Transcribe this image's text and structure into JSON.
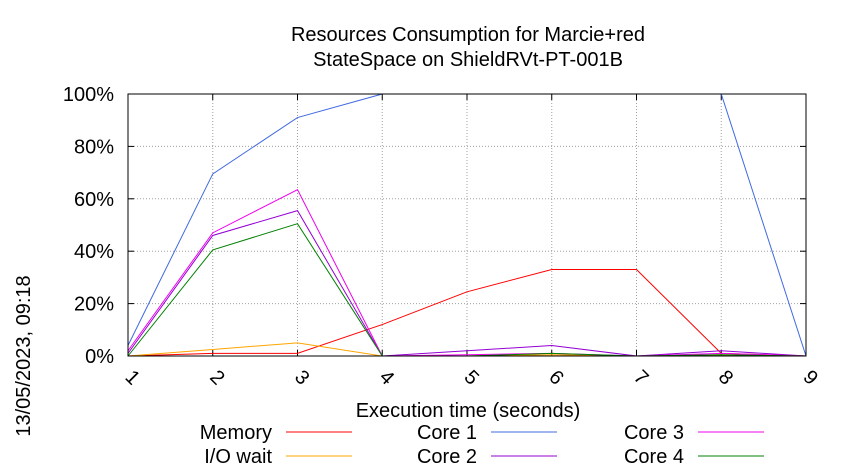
{
  "timestamp": "13/05/2023, 09:18",
  "chart_data": {
    "type": "line",
    "title": [
      "Resources Consumption for Marcie+red",
      "StateSpace on ShieldRVt-PT-001B"
    ],
    "xlabel": "Execution time (seconds)",
    "ylabel": "",
    "xlim": [
      1,
      9
    ],
    "ylim": [
      0,
      100
    ],
    "x_ticks": [
      "1",
      "2",
      "3",
      "4",
      "5",
      "6",
      "7",
      "8",
      "9"
    ],
    "y_ticks": [
      "0%",
      "20%",
      "40%",
      "60%",
      "80%",
      "100%"
    ],
    "grid": true,
    "legend_position": "bottom",
    "x": [
      1,
      2,
      3,
      4,
      5,
      6,
      7,
      8,
      9
    ],
    "series": [
      {
        "name": "Memory",
        "color": "#ff0000",
        "values": [
          0,
          1,
          1,
          12,
          24.5,
          33,
          33,
          1,
          0
        ]
      },
      {
        "name": "I/O wait",
        "color": "#ffa500",
        "values": [
          0,
          2.5,
          5,
          0,
          0,
          0.5,
          0,
          0.5,
          0
        ]
      },
      {
        "name": "Core 1",
        "color": "#4169e1",
        "values": [
          4,
          69.5,
          91,
          100,
          100,
          100,
          100,
          100,
          0
        ]
      },
      {
        "name": "Core 2",
        "color": "#9400d3",
        "values": [
          1,
          46,
          55.5,
          0,
          2,
          4,
          0,
          2,
          0
        ]
      },
      {
        "name": "Core 3",
        "color": "#ee00ee",
        "values": [
          2,
          47,
          63.5,
          0,
          0.5,
          1,
          0,
          1,
          0
        ]
      },
      {
        "name": "Core 4",
        "color": "#008000",
        "values": [
          0,
          40.5,
          50.5,
          0,
          0,
          1,
          0,
          0.5,
          0
        ]
      }
    ]
  }
}
